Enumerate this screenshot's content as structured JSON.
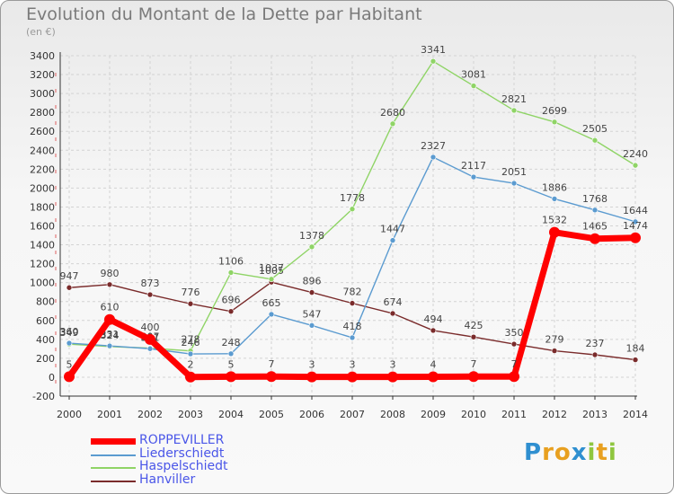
{
  "header": {
    "title": "Evolution du Montant de la Dette par Habitant",
    "unit": "(en €)"
  },
  "logo": {
    "text": "Proxiti"
  },
  "chart_data": {
    "type": "line",
    "title": "Evolution du Montant de la Dette par Habitant",
    "ylabel": "(en €)",
    "x": [
      2000,
      2001,
      2002,
      2003,
      2004,
      2005,
      2006,
      2007,
      2008,
      2009,
      2010,
      2011,
      2012,
      2013,
      2014
    ],
    "ylim": [
      -200,
      3400
    ],
    "yticks": [
      -200,
      0,
      200,
      400,
      600,
      800,
      1000,
      1200,
      1400,
      1600,
      1800,
      2000,
      2200,
      2400,
      2600,
      2800,
      3000,
      3200,
      3400
    ],
    "grid": true,
    "legend_position": "bottom-left",
    "series": [
      {
        "name": "Hanviller",
        "color": "#7a2b2b",
        "values": [
          947,
          980,
          873,
          776,
          696,
          1005,
          896,
          782,
          674,
          494,
          425,
          350,
          279,
          237,
          184
        ]
      },
      {
        "name": "Haspelschiedt",
        "color": "#8fd466",
        "values": [
          349,
          324,
          307,
          278,
          1106,
          1037,
          1378,
          1778,
          2680,
          3341,
          3081,
          2821,
          2699,
          2505,
          2240
        ]
      },
      {
        "name": "Liederschiedt",
        "color": "#5b9bd0",
        "values": [
          360,
          331,
          301,
          246,
          248,
          665,
          547,
          418,
          1447,
          2327,
          2117,
          2051,
          1886,
          1768,
          1644
        ]
      },
      {
        "name": "ROPPEVILLER",
        "color": "#ff0000",
        "values": [
          5,
          610,
          400,
          2,
          5,
          7,
          3,
          3,
          3,
          4,
          7,
          7,
          1532,
          1465,
          1474
        ]
      }
    ],
    "legend_order": [
      "ROPPEVILLER",
      "Liederschiedt",
      "Haspelschiedt",
      "Hanviller"
    ]
  }
}
